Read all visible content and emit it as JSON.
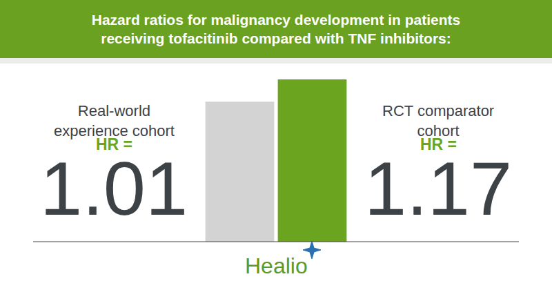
{
  "chart_data": {
    "type": "bar",
    "title": "Hazard ratios for malignancy development in patients receiving tofacitinib compared with TNF inhibitors:",
    "categories": [
      "Real-world experience cohort",
      "RCT comparator cohort"
    ],
    "values": [
      1.01,
      1.17
    ],
    "colors": [
      "#d3d3d3",
      "#6ba51f"
    ],
    "ylim": [
      0,
      1.17
    ],
    "grid": false,
    "tick_labels": false,
    "data_labels": true,
    "annotations": [
      "HR =",
      "HR ="
    ],
    "source": "Healio"
  }
}
